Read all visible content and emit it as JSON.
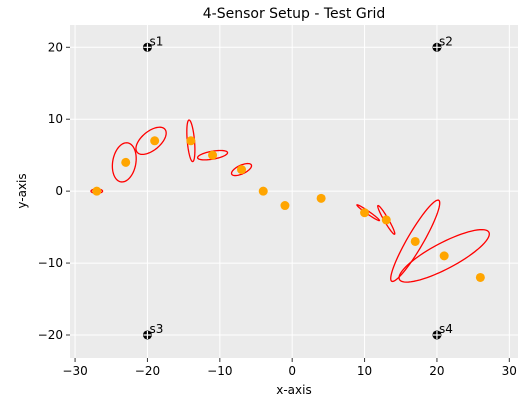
{
  "chart_data": {
    "type": "scatter",
    "title": "4-Sensor Setup - Test Grid",
    "xlabel": "x-axis",
    "ylabel": "y-axis",
    "xlim": [
      -30.7,
      31.2
    ],
    "ylim": [
      -23.2,
      23.1
    ],
    "xticks": [
      {
        "value": -30,
        "label": "−30"
      },
      {
        "value": -20,
        "label": "−20"
      },
      {
        "value": -10,
        "label": "−10"
      },
      0,
      10,
      20,
      30
    ],
    "yticks": [
      {
        "value": -20,
        "label": "−20"
      },
      {
        "value": -10,
        "label": "−10"
      },
      0,
      10,
      20
    ],
    "grid": true,
    "points": {
      "color": "#ffa500",
      "x": [
        -27,
        -23,
        -19,
        -14,
        -11,
        -7,
        -4,
        -1,
        4,
        10,
        13,
        17,
        21,
        26
      ],
      "y": [
        0,
        4,
        7,
        7,
        5,
        3,
        0,
        -2,
        -1,
        -3,
        -4,
        -7,
        -9,
        -12
      ]
    },
    "sensors": {
      "color": "#000000",
      "labels": [
        "s1",
        "s2",
        "s3",
        "s4"
      ],
      "x": [
        -20,
        20,
        -20,
        20
      ],
      "y": [
        20,
        20,
        -20,
        -20
      ]
    },
    "ellipse_color": "#ff0000",
    "ellipses": [
      {
        "cx": -27,
        "cy": 0,
        "width": 1.6,
        "height": 0.6,
        "angle": 0
      },
      {
        "cx": -23.2,
        "cy": 4,
        "width": 3.2,
        "height": 5.5,
        "angle": -10
      },
      {
        "cx": -19.5,
        "cy": 7,
        "width": 5,
        "height": 2.6,
        "angle": 40
      },
      {
        "cx": -14,
        "cy": 7,
        "width": 1,
        "height": 5.8,
        "angle": 5
      },
      {
        "cx": -11,
        "cy": 5,
        "width": 4.2,
        "height": 1.1,
        "angle": 10
      },
      {
        "cx": -7,
        "cy": 3,
        "width": 3,
        "height": 1.2,
        "angle": 25
      },
      {
        "cx": 10.5,
        "cy": -3,
        "width": 3.8,
        "height": 0.4,
        "angle": -35
      },
      {
        "cx": 13,
        "cy": -4,
        "width": 4.6,
        "height": 0.6,
        "angle": -60
      },
      {
        "cx": 17,
        "cy": -6.9,
        "width": 13,
        "height": 2.2,
        "angle": 60
      },
      {
        "cx": 21,
        "cy": -9,
        "width": 14,
        "height": 3.6,
        "angle": 28
      }
    ]
  }
}
